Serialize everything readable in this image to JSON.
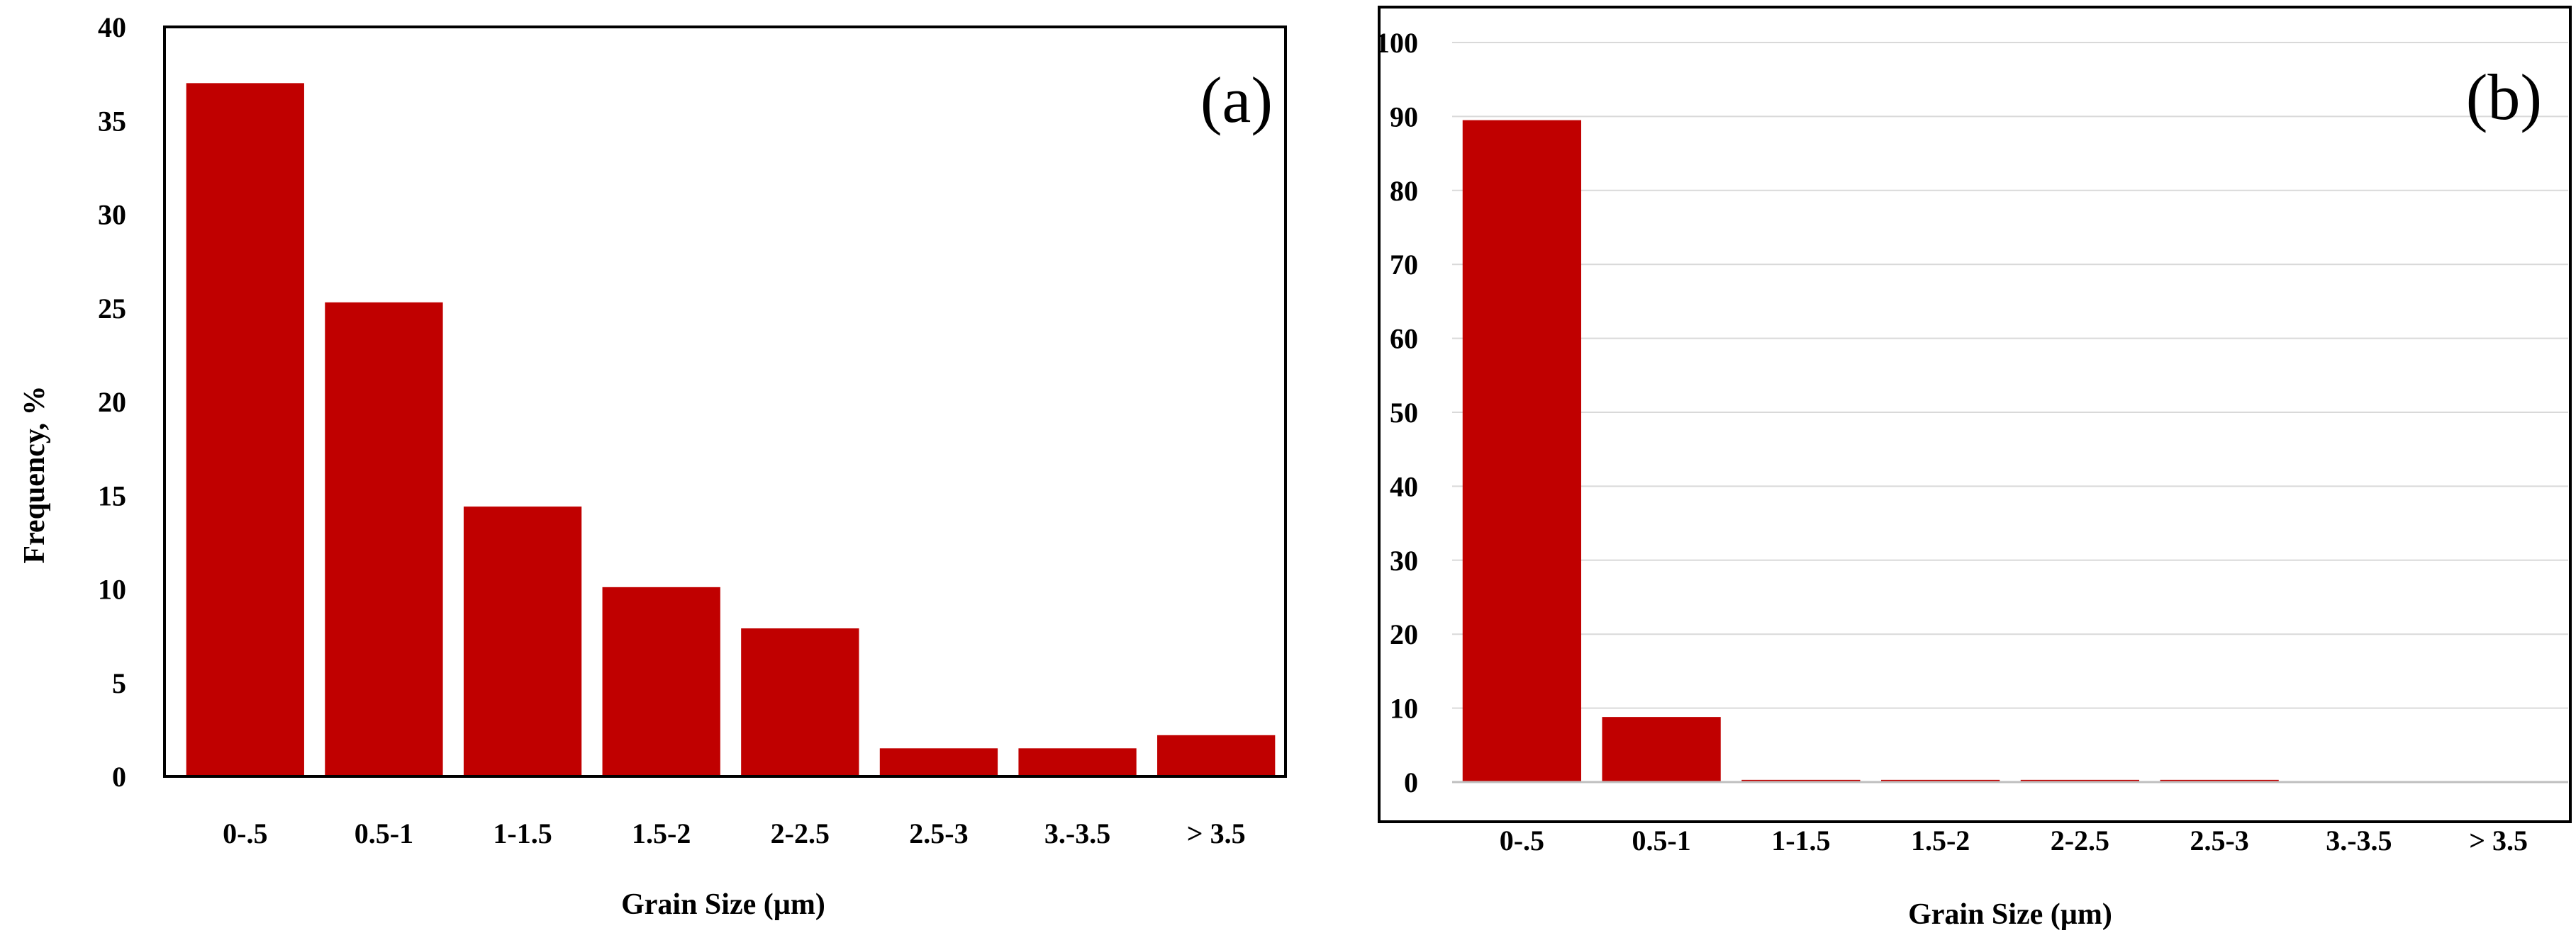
{
  "chart_data": [
    {
      "type": "bar",
      "panel_label": "(a)",
      "categories": [
        "0-.5",
        "0.5-1",
        "1-1.5",
        "1.5-2",
        "2-2.5",
        "2.5-3",
        "3.-3.5",
        "> 3.5"
      ],
      "values": [
        37,
        25.3,
        14.4,
        10.1,
        7.9,
        1.5,
        1.5,
        2.2
      ],
      "xlabel": "Grain Size (µm)",
      "ylabel": "Frequency, %",
      "ylim": [
        0,
        40
      ],
      "yticks": [
        0,
        5,
        10,
        15,
        20,
        25,
        30,
        35,
        40
      ],
      "grid": false,
      "bar_color": "#c00000"
    },
    {
      "type": "bar",
      "panel_label": "(b)",
      "categories": [
        "0-.5",
        "0.5-1",
        "1-1.5",
        "1.5-2",
        "2-2.5",
        "2.5-3",
        "3.-3.5",
        "> 3.5"
      ],
      "values": [
        89.5,
        8.8,
        0.3,
        0.3,
        0.3,
        0.3,
        0,
        0
      ],
      "xlabel": "Grain Size (µm)",
      "ylabel": "",
      "ylim": [
        0,
        100
      ],
      "yticks": [
        0,
        10,
        20,
        30,
        40,
        50,
        60,
        70,
        80,
        90,
        100
      ],
      "grid": true,
      "bar_color": "#c00000"
    }
  ]
}
